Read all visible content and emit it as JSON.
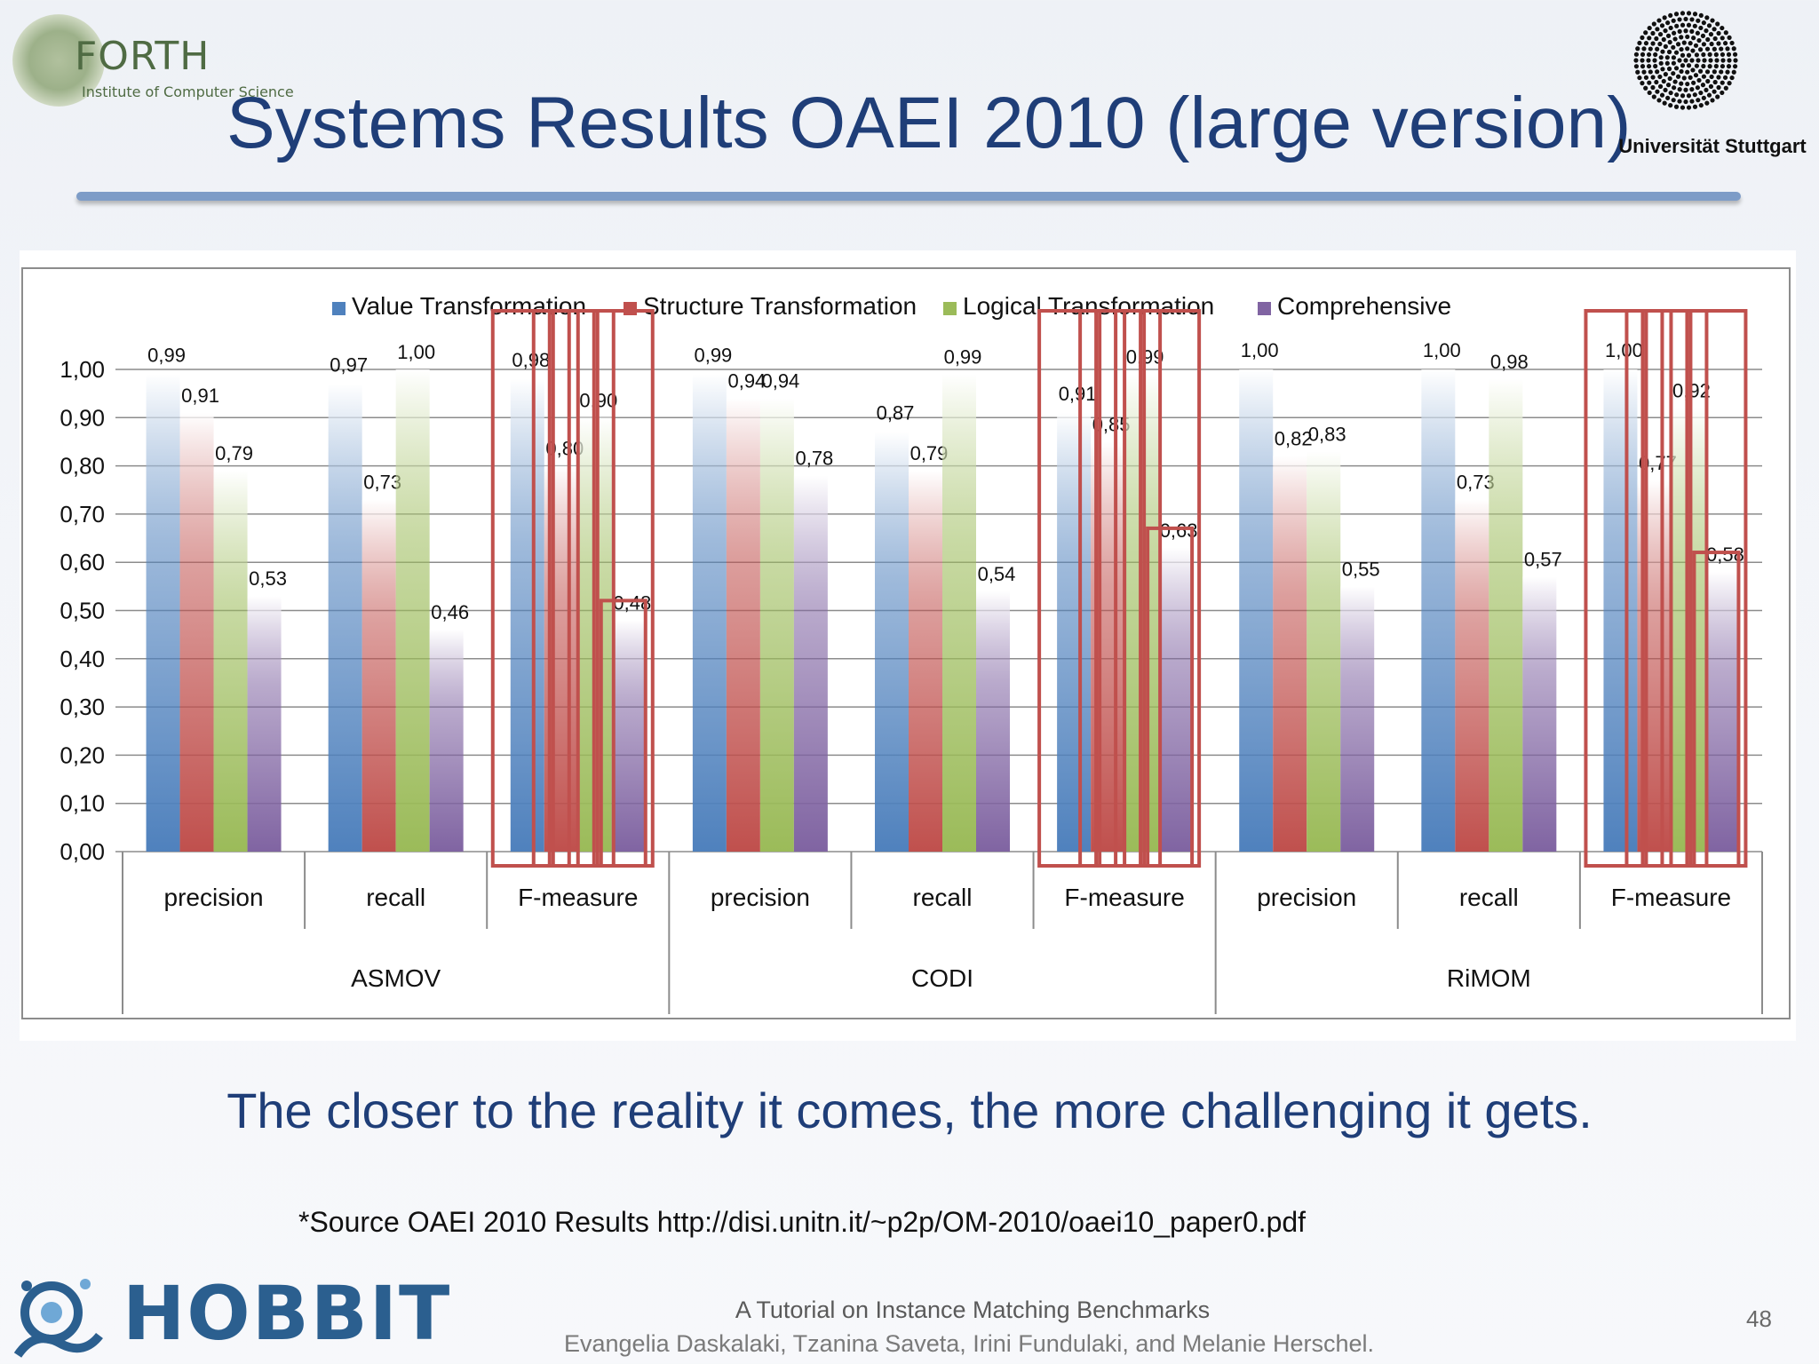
{
  "header": {
    "forth_name": "FORTH",
    "forth_subtitle": "Institute of Computer Science",
    "title": "Systems Results OAEI 2010 (large version)",
    "university": "Universität Stuttgart"
  },
  "chart_data": {
    "type": "bar",
    "legend_position": "top",
    "grid": true,
    "ylim": [
      0,
      1
    ],
    "y_ticks": [
      "0,00",
      "0,10",
      "0,20",
      "0,30",
      "0,40",
      "0,50",
      "0,60",
      "0,70",
      "0,80",
      "0,90",
      "1,00"
    ],
    "groups": [
      {
        "system": "ASMOV",
        "categories": [
          "precision",
          "recall",
          "F-measure"
        ]
      },
      {
        "system": "CODI",
        "categories": [
          "precision",
          "recall",
          "F-measure"
        ]
      },
      {
        "system": "RiMOM",
        "categories": [
          "precision",
          "recall",
          "F-measure"
        ]
      }
    ],
    "categories": [
      "precision",
      "recall",
      "F-measure",
      "precision",
      "recall",
      "F-measure",
      "precision",
      "recall",
      "F-measure"
    ],
    "series": [
      {
        "name": "Value Transformation",
        "color": "#4f81bd",
        "values": [
          0.99,
          0.97,
          0.98,
          0.99,
          0.87,
          0.91,
          1.0,
          1.0,
          1.0
        ],
        "labels": [
          "0,99",
          "0,97",
          "0,98",
          "0,99",
          "0,87",
          "0,91",
          "1,00",
          "1,00",
          "1,00"
        ]
      },
      {
        "name": "Structure Transformation",
        "color": "#c0504d",
        "values": [
          0.91,
          0.73,
          0.8,
          0.94,
          0.79,
          0.85,
          0.82,
          0.73,
          0.77
        ],
        "labels": [
          "0,91",
          "0,73",
          "0,80",
          "0,94",
          "0,79",
          "0,85",
          "0,82",
          "0,73",
          "0,77"
        ]
      },
      {
        "name": "Logical Transformation",
        "color": "#9bbb59",
        "values": [
          0.79,
          1.0,
          0.9,
          0.94,
          0.99,
          0.99,
          0.83,
          0.98,
          0.92
        ],
        "labels": [
          "0,79",
          "1,00",
          "0,90",
          "0,94",
          "0,99",
          "0,99",
          "0,83",
          "0,98",
          "0,92"
        ]
      },
      {
        "name": "Comprehensive",
        "color": "#8064a2",
        "values": [
          0.53,
          0.46,
          0.48,
          0.78,
          0.54,
          0.63,
          0.55,
          0.57,
          0.58
        ],
        "labels": [
          "0,53",
          "0,46",
          "0,48",
          "0,78",
          "0,54",
          "0,63",
          "0,55",
          "0,57",
          "0,58"
        ]
      }
    ],
    "highlight_color": "#c0504d",
    "highlighted_categories": [
      "F-measure"
    ]
  },
  "tagline": "The closer to the reality it comes, the more challenging it gets.",
  "source": "*Source OAEI 2010 Results http://disi.unitn.it/~p2p/OM-2010/oaei10_paper0.pdf",
  "footer": {
    "hobbit": "HOBBIT",
    "tutorial": "A Tutorial on Instance Matching Benchmarks",
    "authors": "Evangelia Daskalaki, Tzanina Saveta, Irini Fundulaki, and Melanie Herschel.",
    "page": "48"
  }
}
